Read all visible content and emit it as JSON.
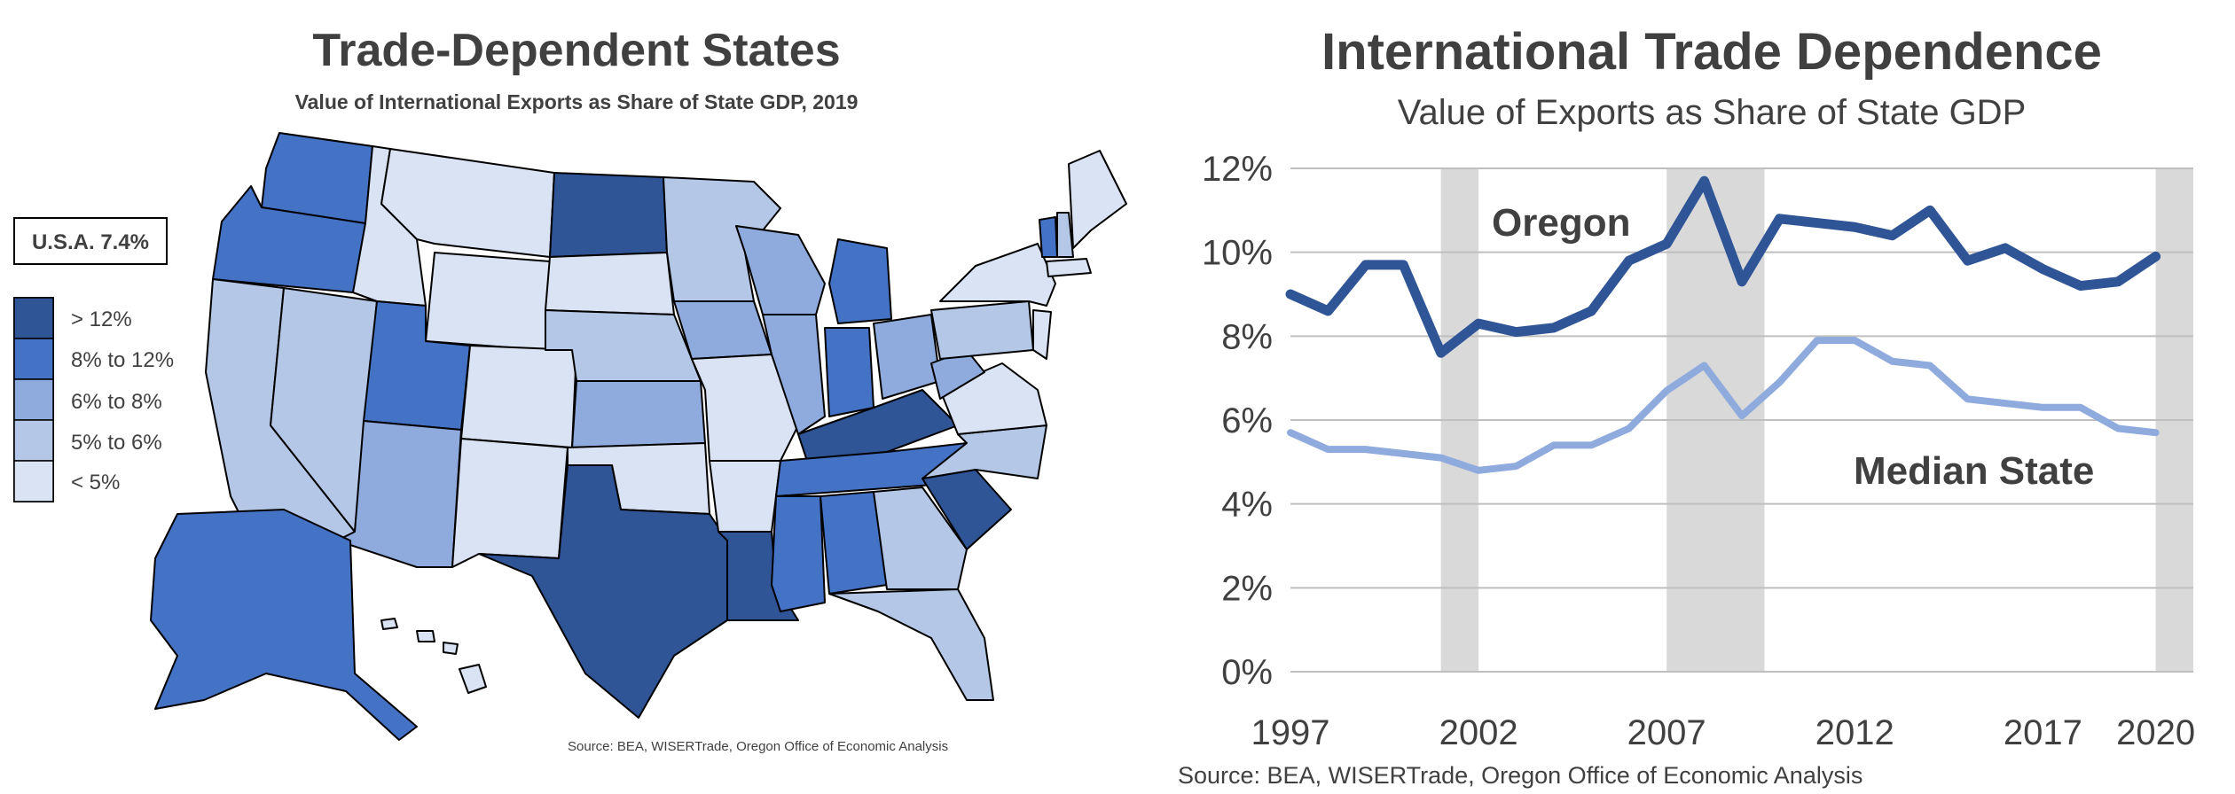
{
  "chart_data": [
    {
      "type": "choropleth-map",
      "title": "Trade-Dependent States",
      "subtitle": "Value of International Exports as Share of State GDP, 2019",
      "callout": "U.S.A. 7.4%",
      "legend": [
        {
          "label": "> 12%",
          "color": "#2f5597"
        },
        {
          "label": "8% to 12%",
          "color": "#4472c4"
        },
        {
          "label": "6% to 8%",
          "color": "#8faadc"
        },
        {
          "label": "5% to 6%",
          "color": "#b4c7e7"
        },
        {
          "label": "< 5%",
          "color": "#dae3f3"
        }
      ],
      "legend_placement": "left",
      "source": "Source: BEA, WISERTrade, Oregon Office of Economic Analysis"
    },
    {
      "type": "line",
      "title": "International Trade Dependence",
      "subtitle": "Value of Exports as Share of State GDP",
      "x": [
        1997,
        1998,
        1999,
        2000,
        2001,
        2002,
        2003,
        2004,
        2005,
        2006,
        2007,
        2008,
        2009,
        2010,
        2011,
        2012,
        2013,
        2014,
        2015,
        2016,
        2017,
        2018,
        2019,
        2020
      ],
      "series": [
        {
          "name": "Oregon",
          "color": "#2f5597",
          "values": [
            9.0,
            8.6,
            9.7,
            9.7,
            7.6,
            8.3,
            8.1,
            8.2,
            8.6,
            9.8,
            10.2,
            11.7,
            9.3,
            10.8,
            10.7,
            10.6,
            10.4,
            11.0,
            9.8,
            10.1,
            9.6,
            9.2,
            9.3,
            9.9
          ]
        },
        {
          "name": "Median State",
          "color": "#8faadc",
          "values": [
            5.7,
            5.3,
            5.3,
            5.2,
            5.1,
            4.8,
            4.9,
            5.4,
            5.4,
            5.8,
            6.7,
            7.3,
            6.1,
            6.9,
            7.9,
            7.9,
            7.4,
            7.3,
            6.5,
            6.4,
            6.3,
            6.3,
            5.8,
            5.7
          ]
        }
      ],
      "ylim": [
        0,
        12
      ],
      "y_ticks": [
        "0%",
        "2%",
        "4%",
        "6%",
        "8%",
        "10%",
        "12%"
      ],
      "y_tick_values": [
        0,
        2,
        4,
        6,
        8,
        10,
        12
      ],
      "x_ticks": [
        "1997",
        "2002",
        "2007",
        "2012",
        "2017",
        "2020"
      ],
      "x_tick_values": [
        1997,
        2002,
        2007,
        2012,
        2017,
        2020
      ],
      "recessions": [
        [
          2001,
          2002
        ],
        [
          2007,
          2009.6
        ],
        [
          2020,
          2021
        ]
      ],
      "recession_color": "#d9d9d9",
      "grid": "horizontal",
      "source": "Source: BEA, WISERTrade, Oregon Office of Economic Analysis"
    }
  ]
}
